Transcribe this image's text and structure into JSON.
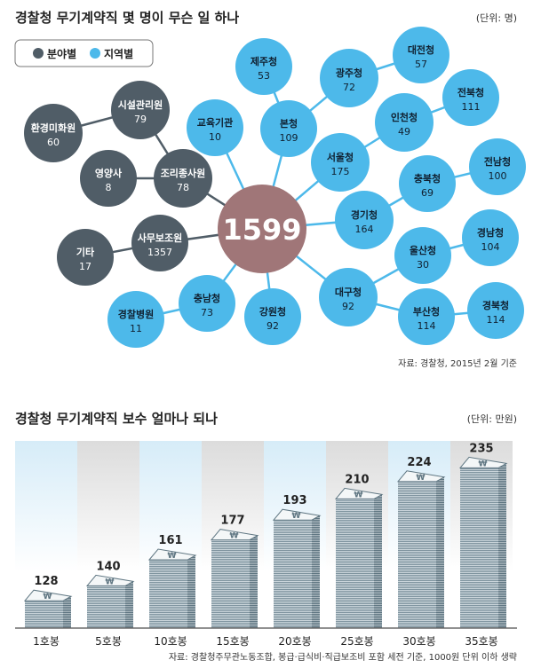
{
  "diagram": {
    "title": "경찰청 무기계약직 몇 명이 무슨 일 하나",
    "unit": "(단위: 명)",
    "legend": [
      {
        "label": "분야별",
        "color": "#505d67"
      },
      {
        "label": "지역별",
        "color": "#4db9ea"
      }
    ],
    "center": {
      "value": "1599",
      "color": "#a07678"
    },
    "nodes": [
      {
        "id": "hwan",
        "label": "환경미화원",
        "value": "60",
        "group": 0
      },
      {
        "id": "sisul",
        "label": "시설관리원",
        "value": "79",
        "group": 0
      },
      {
        "id": "young",
        "label": "영양사",
        "value": "8",
        "group": 0
      },
      {
        "id": "jori",
        "label": "조리종사원",
        "value": "78",
        "group": 0
      },
      {
        "id": "samu",
        "label": "사무보조원",
        "value": "1357",
        "group": 0
      },
      {
        "id": "gita",
        "label": "기타",
        "value": "17",
        "group": 0
      },
      {
        "id": "jeju",
        "label": "제주청",
        "value": "53",
        "group": 1
      },
      {
        "id": "gwangju",
        "label": "광주청",
        "value": "72",
        "group": 1
      },
      {
        "id": "daejeon",
        "label": "대전청",
        "value": "57",
        "group": 1
      },
      {
        "id": "edu",
        "label": "교육기관",
        "value": "10",
        "group": 1
      },
      {
        "id": "bon",
        "label": "본청",
        "value": "109",
        "group": 1
      },
      {
        "id": "jeonbuk",
        "label": "전북청",
        "value": "111",
        "group": 1
      },
      {
        "id": "incheon",
        "label": "인천청",
        "value": "49",
        "group": 1
      },
      {
        "id": "seoul",
        "label": "서울청",
        "value": "175",
        "group": 1
      },
      {
        "id": "jeonnam",
        "label": "전남청",
        "value": "100",
        "group": 1
      },
      {
        "id": "chungbuk",
        "label": "충북청",
        "value": "69",
        "group": 1
      },
      {
        "id": "gyeonggi",
        "label": "경기청",
        "value": "164",
        "group": 1
      },
      {
        "id": "gyeongnam",
        "label": "경남청",
        "value": "104",
        "group": 1
      },
      {
        "id": "ulsan",
        "label": "울산청",
        "value": "30",
        "group": 1
      },
      {
        "id": "daegu",
        "label": "대구청",
        "value": "92",
        "group": 1
      },
      {
        "id": "busan",
        "label": "부산청",
        "value": "114",
        "group": 1
      },
      {
        "id": "gyeongbuk",
        "label": "경북청",
        "value": "114",
        "group": 1
      },
      {
        "id": "gangwon",
        "label": "강원청",
        "value": "92",
        "group": 1
      },
      {
        "id": "chungnam",
        "label": "충남청",
        "value": "73",
        "group": 1
      },
      {
        "id": "hospital",
        "label": "경찰병원",
        "value": "11",
        "group": 1
      }
    ],
    "links": [
      [
        "hwan",
        "sisul"
      ],
      [
        "sisul",
        "jori"
      ],
      [
        "young",
        "jori"
      ],
      [
        "jori",
        "center"
      ],
      [
        "samu",
        "center"
      ],
      [
        "gita",
        "samu"
      ],
      [
        "edu",
        "center"
      ],
      [
        "jeju",
        "bon"
      ],
      [
        "bon",
        "center"
      ],
      [
        "bon",
        "gwangju"
      ],
      [
        "gwangju",
        "daejeon"
      ],
      [
        "seoul",
        "center"
      ],
      [
        "seoul",
        "incheon"
      ],
      [
        "incheon",
        "jeonbuk"
      ],
      [
        "gyeonggi",
        "center"
      ],
      [
        "gyeonggi",
        "chungbuk"
      ],
      [
        "chungbuk",
        "jeonnam"
      ],
      [
        "daegu",
        "center"
      ],
      [
        "daegu",
        "ulsan"
      ],
      [
        "ulsan",
        "gyeongnam"
      ],
      [
        "daegu",
        "busan"
      ],
      [
        "busan",
        "gyeongbuk"
      ],
      [
        "gangwon",
        "center"
      ],
      [
        "chungnam",
        "center"
      ],
      [
        "chungnam",
        "hospital"
      ]
    ],
    "source": "자료: 경찰청, 2015년 2월 기준"
  },
  "chart_data": {
    "type": "bar",
    "title": "경찰청 무기계약직 보수 얼마나 되나",
    "unit": "(단위: 만원)",
    "categories": [
      "1호봉",
      "5호봉",
      "10호봉",
      "15호봉",
      "20호봉",
      "25호봉",
      "30호봉",
      "35호봉"
    ],
    "values": [
      128,
      140,
      161,
      177,
      193,
      210,
      224,
      235
    ],
    "bar_symbol": "₩",
    "xlabel": "",
    "ylabel": "",
    "source": "자료: 경찰청주무관노동조합, 봉급·급식비·직급보조비 포함 세전 기준, 1000원 단위 이하 생략"
  }
}
